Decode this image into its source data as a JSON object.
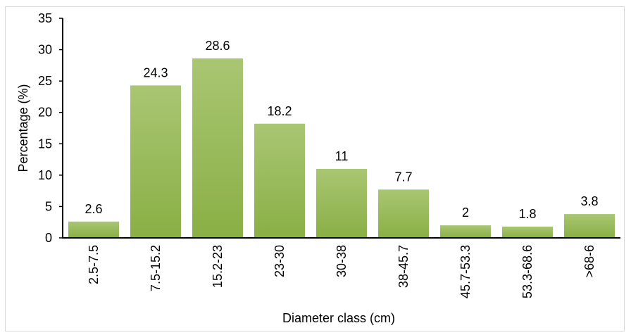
{
  "chart_data": {
    "type": "bar",
    "title": "",
    "xlabel": "Diameter class (cm)",
    "ylabel": "Percentage (%)",
    "categories": [
      "2.5-7.5",
      "7.5-15.2",
      "15.2-23",
      "23-30",
      "30-38",
      "38-45.7",
      "45.7-53.3",
      "53.3-68.6",
      ">68-6"
    ],
    "values": [
      2.6,
      24.3,
      28.6,
      18.2,
      11,
      7.7,
      2,
      1.8,
      3.8
    ],
    "data_labels": [
      "2.6",
      "24.3",
      "28.6",
      "18.2",
      "11",
      "7.7",
      "2",
      "1.8",
      "3.8"
    ],
    "ylim": [
      0,
      35
    ],
    "yticks": [
      "0",
      "5",
      "10",
      "15",
      "20",
      "25",
      "30",
      "35"
    ],
    "grid": false,
    "colors": {
      "bar_top": "#a9c673",
      "bar_bottom": "#8aaf45",
      "axis": "#000000"
    }
  }
}
